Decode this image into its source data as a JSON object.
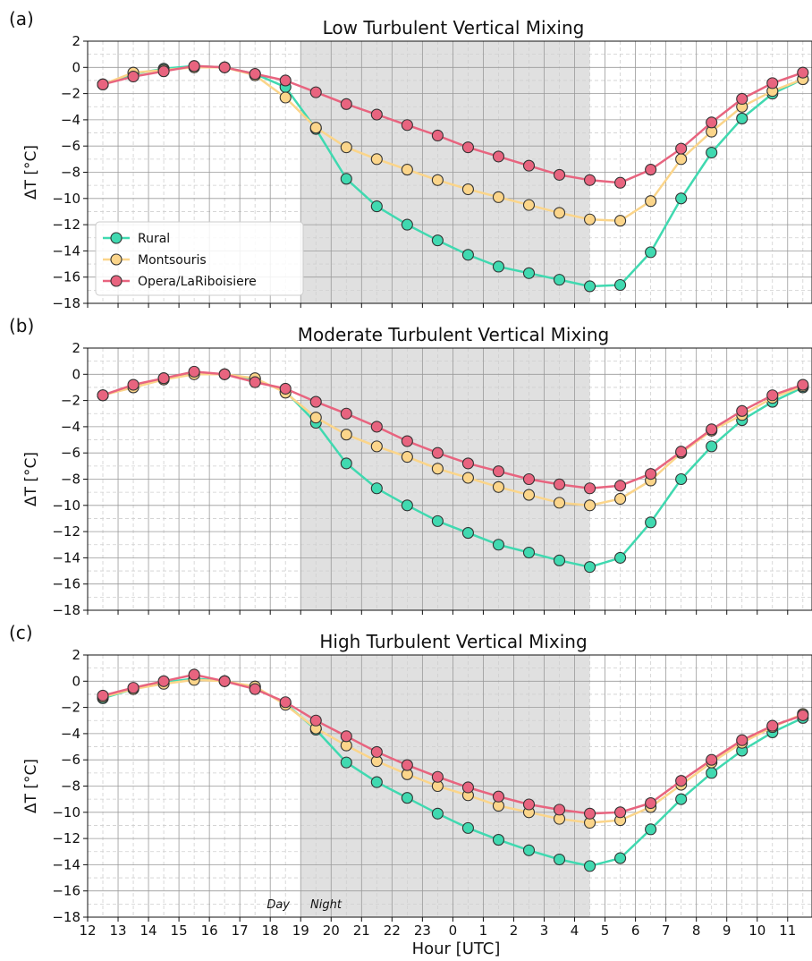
{
  "xlabel": "Hour [UTC]",
  "x_ticks": [
    "12",
    "13",
    "14",
    "15",
    "16",
    "17",
    "18",
    "19",
    "20",
    "21",
    "22",
    "23",
    "0",
    "1",
    "2",
    "3",
    "4",
    "5",
    "6",
    "7",
    "8",
    "9",
    "10",
    "11"
  ],
  "day_label": "Day",
  "night_label": "Night",
  "colors": {
    "Rural": "#40d9b0",
    "Montsouris": "#fbd58a",
    "Opera/LaRiboisiere": "#e8647f",
    "night_shade": "#e0e0e0"
  },
  "chart_data": [
    {
      "type": "line",
      "panel_label": "(a)",
      "title": "Low Turbulent Vertical Mixing",
      "ylabel": "ΔT [°C]",
      "ylim": [
        -18,
        2
      ],
      "yticks": [
        2,
        0,
        -2,
        -4,
        -6,
        -8,
        -10,
        -12,
        -14,
        -16,
        -18
      ],
      "x": [
        12.5,
        13.5,
        14.5,
        15.5,
        16.5,
        17.5,
        18.5,
        19.5,
        20.5,
        21.5,
        22.5,
        23.5,
        24.5,
        25.5,
        26.5,
        27.5,
        28.5,
        29.5,
        30.5,
        31.5,
        32.5,
        33.5,
        34.5,
        35.5
      ],
      "xlim": [
        12,
        35.8
      ],
      "night_span": [
        19,
        28.5
      ],
      "grid": true,
      "legend": "lower-left",
      "series": [
        {
          "name": "Rural",
          "values": [
            -1.3,
            -0.5,
            -0.1,
            0.1,
            0.0,
            -0.5,
            -1.5,
            -4.7,
            -8.5,
            -10.6,
            -12.0,
            -13.2,
            -14.3,
            -15.2,
            -15.7,
            -16.2,
            -16.7,
            -16.6,
            -14.1,
            -10.0,
            -6.5,
            -3.9,
            -2.0,
            -0.9
          ]
        },
        {
          "name": "Montsouris",
          "values": [
            -1.3,
            -0.4,
            -0.2,
            0.0,
            0.0,
            -0.6,
            -2.3,
            -4.6,
            -6.1,
            -7.0,
            -7.8,
            -8.6,
            -9.3,
            -9.9,
            -10.5,
            -11.1,
            -11.6,
            -11.7,
            -10.2,
            -7.0,
            -4.9,
            -3.0,
            -1.8,
            -0.9
          ]
        },
        {
          "name": "Opera/LaRiboisiere",
          "values": [
            -1.3,
            -0.7,
            -0.3,
            0.1,
            0.0,
            -0.5,
            -1.0,
            -1.9,
            -2.8,
            -3.6,
            -4.4,
            -5.2,
            -6.1,
            -6.8,
            -7.5,
            -8.2,
            -8.6,
            -8.8,
            -7.8,
            -6.2,
            -4.2,
            -2.4,
            -1.2,
            -0.4
          ]
        }
      ]
    },
    {
      "type": "line",
      "panel_label": "(b)",
      "title": "Moderate Turbulent Vertical Mixing",
      "ylabel": "ΔT [°C]",
      "ylim": [
        -18,
        2
      ],
      "yticks": [
        2,
        0,
        -2,
        -4,
        -6,
        -8,
        -10,
        -12,
        -14,
        -16,
        -18
      ],
      "x": [
        12.5,
        13.5,
        14.5,
        15.5,
        16.5,
        17.5,
        18.5,
        19.5,
        20.5,
        21.5,
        22.5,
        23.5,
        24.5,
        25.5,
        26.5,
        27.5,
        28.5,
        29.5,
        30.5,
        31.5,
        32.5,
        33.5,
        34.5,
        35.5
      ],
      "xlim": [
        12,
        35.8
      ],
      "night_span": [
        19,
        28.5
      ],
      "grid": true,
      "series": [
        {
          "name": "Rural",
          "values": [
            -1.6,
            -0.9,
            -0.3,
            0.1,
            0.0,
            -0.4,
            -1.3,
            -3.7,
            -6.8,
            -8.7,
            -10.0,
            -11.2,
            -12.1,
            -13.0,
            -13.6,
            -14.2,
            -14.7,
            -14.0,
            -11.3,
            -8.0,
            -5.5,
            -3.5,
            -2.1,
            -1.0
          ]
        },
        {
          "name": "Montsouris",
          "values": [
            -1.6,
            -1.0,
            -0.4,
            0.0,
            0.0,
            -0.3,
            -1.4,
            -3.3,
            -4.6,
            -5.5,
            -6.3,
            -7.2,
            -7.9,
            -8.6,
            -9.2,
            -9.8,
            -10.0,
            -9.5,
            -8.1,
            -6.0,
            -4.3,
            -3.1,
            -1.8,
            -0.9
          ]
        },
        {
          "name": "Opera/LaRiboisiere",
          "values": [
            -1.6,
            -0.8,
            -0.3,
            0.2,
            0.0,
            -0.6,
            -1.1,
            -2.1,
            -3.0,
            -4.0,
            -5.1,
            -6.0,
            -6.8,
            -7.4,
            -8.0,
            -8.4,
            -8.7,
            -8.5,
            -7.6,
            -5.9,
            -4.2,
            -2.8,
            -1.6,
            -0.8
          ]
        }
      ]
    },
    {
      "type": "line",
      "panel_label": "(c)",
      "title": "High Turbulent Vertical Mixing",
      "ylabel": "ΔT [°C]",
      "ylim": [
        -18,
        2
      ],
      "yticks": [
        2,
        0,
        -2,
        -4,
        -6,
        -8,
        -10,
        -12,
        -14,
        -16,
        -18
      ],
      "x": [
        12.5,
        13.5,
        14.5,
        15.5,
        16.5,
        17.5,
        18.5,
        19.5,
        20.5,
        21.5,
        22.5,
        23.5,
        24.5,
        25.5,
        26.5,
        27.5,
        28.5,
        29.5,
        30.5,
        31.5,
        32.5,
        33.5,
        34.5,
        35.5
      ],
      "xlim": [
        12,
        35.8
      ],
      "night_span": [
        19,
        28.5
      ],
      "grid": true,
      "series": [
        {
          "name": "Rural",
          "values": [
            -1.3,
            -0.6,
            -0.1,
            0.2,
            0.0,
            -0.5,
            -1.7,
            -3.7,
            -6.2,
            -7.7,
            -8.9,
            -10.1,
            -11.2,
            -12.1,
            -12.9,
            -13.6,
            -14.1,
            -13.5,
            -11.3,
            -9.0,
            -7.0,
            -5.3,
            -3.9,
            -2.8
          ]
        },
        {
          "name": "Montsouris",
          "values": [
            -1.2,
            -0.6,
            -0.2,
            0.1,
            0.0,
            -0.4,
            -1.8,
            -3.6,
            -4.9,
            -6.1,
            -7.1,
            -8.0,
            -8.7,
            -9.5,
            -10.0,
            -10.5,
            -10.8,
            -10.6,
            -9.6,
            -7.9,
            -6.2,
            -4.7,
            -3.5,
            -2.5
          ]
        },
        {
          "name": "Opera/LaRiboisiere",
          "values": [
            -1.1,
            -0.5,
            0.0,
            0.5,
            0.0,
            -0.6,
            -1.6,
            -3.0,
            -4.2,
            -5.4,
            -6.4,
            -7.3,
            -8.1,
            -8.8,
            -9.4,
            -9.8,
            -10.1,
            -10.0,
            -9.3,
            -7.6,
            -6.0,
            -4.5,
            -3.4,
            -2.6
          ]
        }
      ]
    }
  ]
}
